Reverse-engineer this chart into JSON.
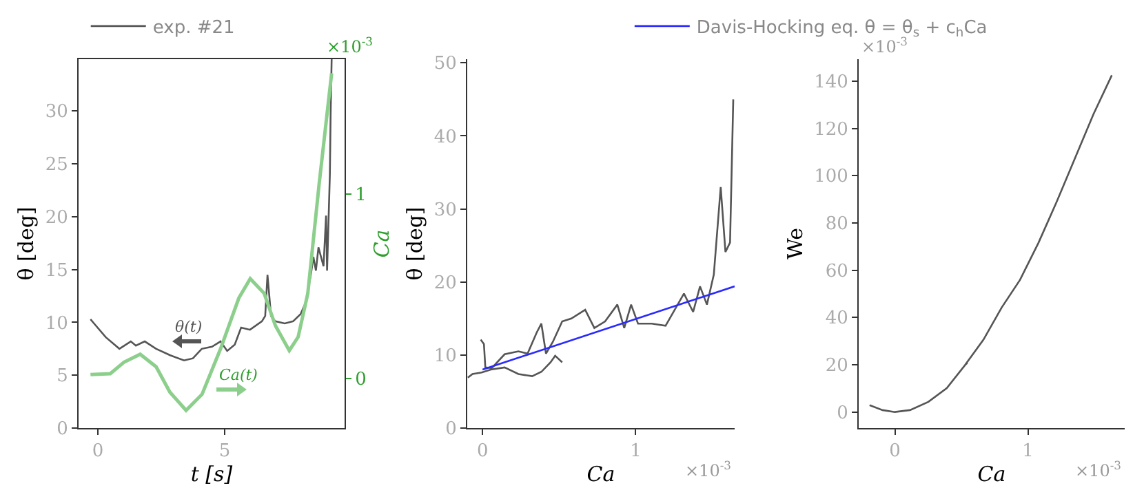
{
  "chart_data": [
    {
      "type": "line",
      "xlabel": "t [s]",
      "ylabel": "θ [deg]",
      "y2label": "Ca",
      "legend": "top",
      "xlim": [
        -0.76,
        9.73
      ],
      "xticks": [
        0,
        5
      ],
      "ylim": [
        0,
        34.9
      ],
      "yticks": [
        0,
        5,
        10,
        15,
        20,
        25,
        30
      ],
      "y2lim": [
        -0.27,
        1.73
      ],
      "y2ticks": [
        0,
        1
      ],
      "series": [
        {
          "name": "exp. #21",
          "color": "#555555",
          "x": [
            -0.29,
            -0.15,
            0.31,
            0.85,
            1.3,
            1.5,
            1.85,
            2.3,
            2.84,
            3.4,
            3.75,
            4.1,
            4.5,
            4.84,
            5.1,
            5.4,
            5.65,
            6.0,
            6.47,
            6.6,
            6.69,
            6.83,
            7.0,
            7.37,
            7.7,
            8.0,
            8.2,
            8.4,
            8.5,
            8.6,
            8.7,
            8.9,
            9.0,
            9.04,
            9.15,
            9.18,
            9.22
          ],
          "values": [
            10.3,
            9.9,
            8.6,
            7.5,
            8.2,
            7.8,
            8.2,
            7.5,
            6.9,
            6.4,
            6.6,
            7.5,
            7.7,
            8.2,
            7.3,
            7.9,
            9.5,
            9.3,
            10.1,
            10.6,
            14.5,
            10.6,
            10.1,
            9.9,
            10.1,
            10.8,
            11.9,
            14.5,
            16.2,
            14.9,
            17.1,
            15.3,
            20.1,
            14.9,
            24.0,
            29.7,
            34.9
          ]
        },
        {
          "color": "#8ccf8c",
          "axis": "y2",
          "x": [
            -0.29,
            0.49,
            1.03,
            1.67,
            2.3,
            2.84,
            3.48,
            4.11,
            4.84,
            5.56,
            6.01,
            6.56,
            7.0,
            7.55,
            7.9,
            8.28,
            8.73,
            9.22
          ],
          "values": [
            0.02,
            0.025,
            0.087,
            0.13,
            0.062,
            -0.075,
            -0.174,
            -0.087,
            0.16,
            0.435,
            0.54,
            0.46,
            0.286,
            0.15,
            0.224,
            0.46,
            1.057,
            1.654
          ]
        }
      ],
      "annotations": [
        "θ(t)",
        "Ca(t)",
        "×10$^{-3}$"
      ]
    },
    {
      "type": "line",
      "xlabel": "Ca",
      "ylabel": "θ [deg]",
      "legend": "top",
      "xlim": [
        -0.1,
        1.646
      ],
      "xticks": [
        0,
        1
      ],
      "ylim": [
        0,
        50.5
      ],
      "yticks": [
        0,
        10,
        20,
        30,
        40,
        50
      ],
      "series": [
        {
          "color": "#555555",
          "x": [
            -0.096,
            -0.066,
            -0.006,
            0.054,
            0.144,
            0.234,
            0.324,
            0.384,
            0.444,
            0.474,
            0.52
          ],
          "values": [
            6.9,
            7.4,
            7.6,
            8.0,
            8.3,
            7.4,
            7.1,
            7.7,
            9.0,
            9.9,
            9.0
          ]
        },
        {
          "color": "#555555",
          "x": [
            -0.012,
            0.009,
            0.018,
            0.06,
            0.144,
            0.234,
            0.294,
            0.354,
            0.384,
            0.414,
            0.459,
            0.52,
            0.58,
            0.67,
            0.73,
            0.8,
            0.88,
            0.925,
            0.97,
            1.015,
            1.105,
            1.195,
            1.315,
            1.375,
            1.42,
            1.465,
            1.51,
            1.555,
            1.586,
            1.616,
            1.637
          ],
          "values": [
            12.1,
            11.5,
            8.3,
            8.2,
            10.1,
            10.5,
            10.2,
            13.1,
            14.3,
            10.2,
            11.8,
            14.6,
            15.0,
            16.2,
            13.7,
            14.6,
            16.9,
            13.7,
            16.9,
            14.3,
            14.3,
            14.0,
            18.4,
            15.9,
            19.4,
            16.9,
            21.0,
            33.0,
            24.1,
            25.4,
            45.0
          ]
        },
        {
          "name": "Davis-Hocking eq. θ = θ$_{s}$ + c$_{h}$Ca",
          "color": "#2a2aff",
          "x": [
            0,
            1.646
          ],
          "values": [
            8.0,
            19.4
          ]
        }
      ],
      "annotations": [
        "×10$^{-3}$"
      ]
    },
    {
      "type": "line",
      "xlabel": "Ca",
      "ylabel": "We",
      "xlim": [
        -0.272,
        1.728
      ],
      "xticks": [
        0,
        1
      ],
      "ylim": [
        -6.8,
        149.3
      ],
      "yticks": [
        0,
        20,
        40,
        60,
        80,
        100,
        120,
        140
      ],
      "series": [
        {
          "color": "#555555",
          "x": [
            -0.19,
            -0.093,
            0,
            0.114,
            0.252,
            0.39,
            0.528,
            0.545,
            0.528,
            0.666,
            0.803,
            0.941,
            1.079,
            1.217,
            1.355,
            1.493,
            1.631
          ],
          "values": [
            2.9,
            0.8,
            0,
            0.8,
            4.3,
            10.1,
            19.9,
            20.8,
            19.9,
            30.6,
            44.2,
            55.9,
            71.5,
            89,
            107.5,
            126,
            142.5
          ]
        }
      ],
      "annotations": [
        "×10$^{-3}$",
        "×10$^{-3}$"
      ]
    }
  ]
}
